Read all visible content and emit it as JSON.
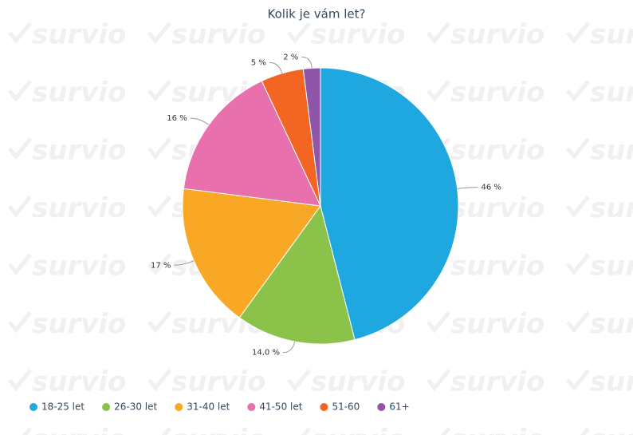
{
  "watermark": "survio",
  "chart_data": {
    "type": "pie",
    "title": "Kolik je vám let?",
    "categories": [
      "18-25 let",
      "26-30 let",
      "31-40 let",
      "41-50 let",
      "51-60",
      "61+"
    ],
    "values": [
      46,
      14,
      17,
      16,
      5,
      2
    ],
    "value_labels": [
      "46 %",
      "14,0 %",
      "17 %",
      "16 %",
      "5 %",
      "2 %"
    ],
    "colors": [
      "#1fa8e0",
      "#8bc34a",
      "#f9a825",
      "#e770ad",
      "#f26522",
      "#8e55a8"
    ],
    "legend": "bottom-left"
  }
}
